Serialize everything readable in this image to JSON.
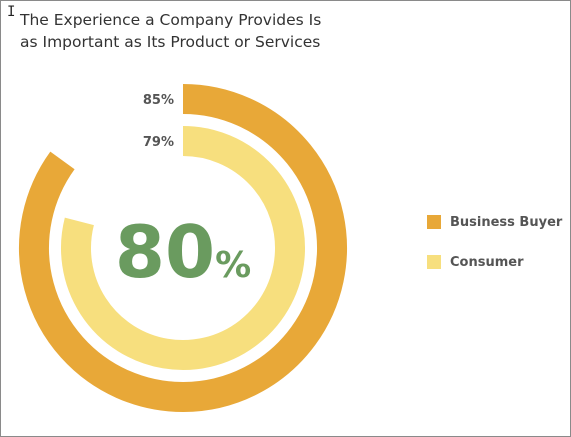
{
  "title_lines": [
    "The Experience a Company Provides Is",
    "as Important as Its Product or Services"
  ],
  "center_label": {
    "value": "80",
    "unit": "%"
  },
  "colors": {
    "business_buyer": "#e8a838",
    "consumer": "#f7df7e",
    "center_text": "#6a9b5f"
  },
  "chart_data": {
    "type": "pie",
    "subtype": "radial-progress",
    "title": "The Experience a Company Provides Is as Important as Its Product or Services",
    "series": [
      {
        "name": "Business Buyer",
        "value": 85,
        "label": "85%",
        "color": "#e8a838"
      },
      {
        "name": "Consumer",
        "value": 79,
        "label": "79%",
        "color": "#f7df7e"
      }
    ],
    "center_value": "80%",
    "max": 100,
    "legend_position": "right"
  }
}
